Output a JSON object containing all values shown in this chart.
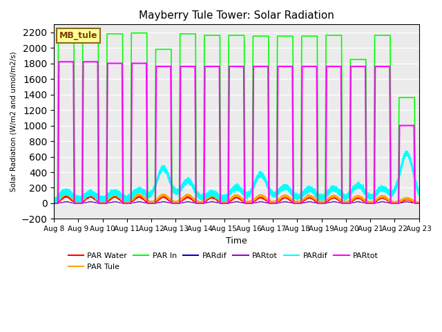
{
  "title": "Mayberry Tule Tower: Solar Radiation",
  "ylabel": "Solar Radiation (W/m2 and umol/m2/s)",
  "xlabel": "Time",
  "ylim": [
    -200,
    2300
  ],
  "yticks": [
    -200,
    0,
    200,
    400,
    600,
    800,
    1000,
    1200,
    1400,
    1600,
    1800,
    2000,
    2200
  ],
  "annotation_text": "MB_tule",
  "annotation_color": "#7B3F00",
  "annotation_bg": "#FFFF99",
  "annotation_border": "#8B6914",
  "bg_color": "#EBEBEB",
  "fig_bg": "#FFFFFF",
  "legend_items": [
    {
      "label": "PAR Water",
      "color": "#FF0000"
    },
    {
      "label": "PAR Tule",
      "color": "#FFA500"
    },
    {
      "label": "PAR In",
      "color": "#00FF00"
    },
    {
      "label": "PARdif",
      "color": "#0000CD"
    },
    {
      "label": "PARtot",
      "color": "#9900CC"
    },
    {
      "label": "PARdif",
      "color": "#00FFFF"
    },
    {
      "label": "PARtot",
      "color": "#FF00FF"
    }
  ]
}
